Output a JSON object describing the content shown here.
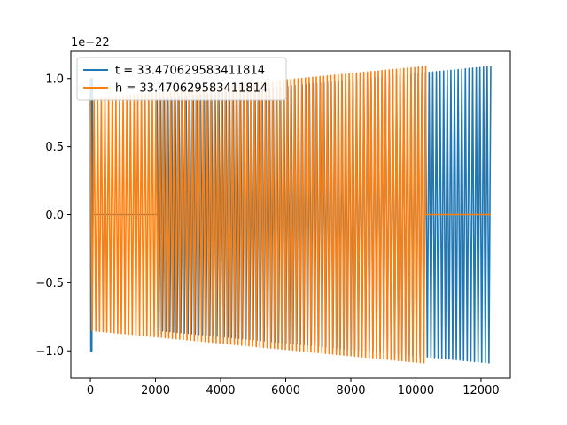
{
  "chart_data": {
    "type": "line",
    "title": "",
    "xlabel": "",
    "ylabel": "",
    "offset_text": "1e−22",
    "xlim": [
      -600,
      12900
    ],
    "ylim": [
      -1.2,
      1.2
    ],
    "x_ticks": [
      0,
      2000,
      4000,
      6000,
      8000,
      10000,
      12000
    ],
    "x_tick_labels": [
      "0",
      "2000",
      "4000",
      "6000",
      "8000",
      "10000",
      "12000"
    ],
    "y_ticks": [
      -1.0,
      -0.5,
      0.0,
      0.5,
      1.0
    ],
    "y_tick_labels": [
      "−1.0",
      "−0.5",
      "0.0",
      "0.5",
      "1.0"
    ],
    "grid": false,
    "legend_position": "upper-left",
    "series": [
      {
        "name": "t = 33.470629583411814",
        "color": "#1f77b4",
        "segments": [
          {
            "x_start": 0,
            "x_end": 60,
            "amp_start": 1.0,
            "amp_end": 1.0,
            "cycles": 2
          },
          {
            "x_start": 60,
            "x_end": 2050,
            "amp_start": 0.0,
            "amp_end": 0.0,
            "cycles": 0
          },
          {
            "x_start": 2050,
            "x_end": 12300,
            "amp_start": 0.85,
            "amp_end": 1.09,
            "cycles": 92
          }
        ]
      },
      {
        "name": "h = 33.470629583411814",
        "color": "#ff7f0e",
        "segments": [
          {
            "x_start": 0,
            "x_end": 10300,
            "amp_start": 0.85,
            "amp_end": 1.09,
            "cycles": 92
          },
          {
            "x_start": 10300,
            "x_end": 12300,
            "amp_start": 0.0,
            "amp_end": 0.0,
            "cycles": 0
          }
        ]
      }
    ]
  }
}
